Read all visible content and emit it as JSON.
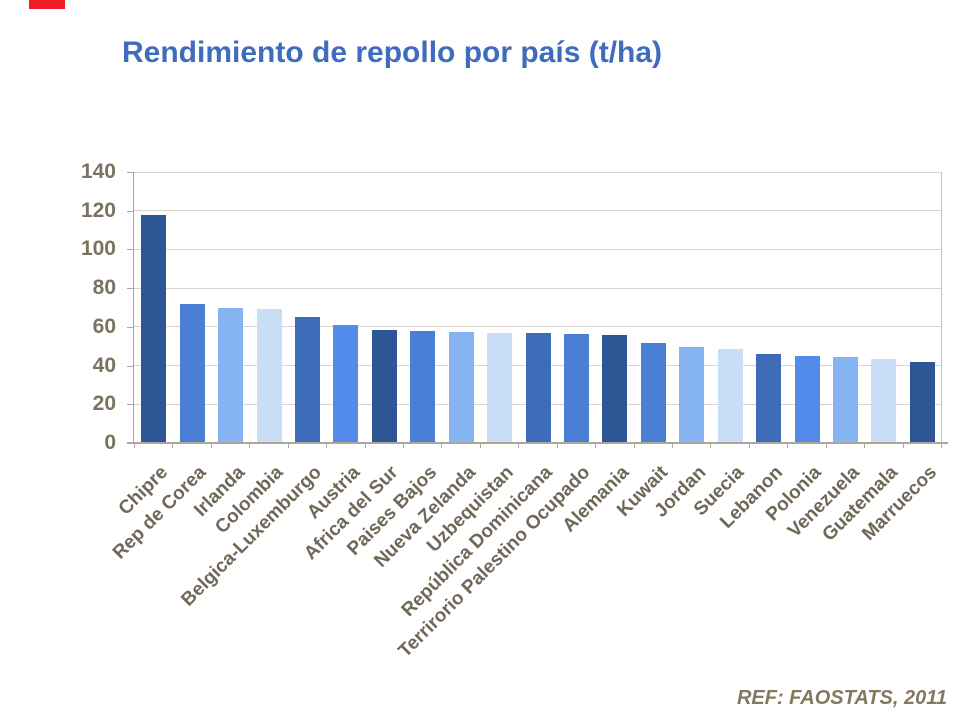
{
  "slide": {
    "title": "Rendimiento de repollo por país (t/ha)",
    "footer_ref": "REF: FAOSTATS, 2011",
    "accent_color": "#EE1C25",
    "title_color": "#3F6CBB",
    "footer_color": "#84795F",
    "background_color": "#FFFFFF"
  },
  "chart_data": {
    "type": "bar",
    "title": "Rendimiento de repollo por país (t/ha)",
    "xlabel": "",
    "ylabel": "",
    "ylim": [
      0,
      140
    ],
    "yticks": [
      0,
      20,
      40,
      60,
      80,
      100,
      120,
      140
    ],
    "grid": true,
    "legend": false,
    "categories": [
      "Chipre",
      "Rep de Corea",
      "Irlanda",
      "Colombia",
      "Belgica-Luxemburgo",
      "Austria",
      "Africa del Sur",
      "Paises Bajos",
      "Nueva Zelanda",
      "Uzbequistan",
      "República Dominicana",
      "Terrirorio Palestino Ocupado",
      "Alemania",
      "Kuwait",
      "Jordan",
      "Suecia",
      "Lebanon",
      "Polonia",
      "Venezuela",
      "Guatemala",
      "Marruecos"
    ],
    "values": [
      118,
      72,
      70,
      69,
      65,
      61,
      58.5,
      58,
      57.5,
      57,
      57,
      56.5,
      56,
      51.5,
      49.5,
      48.5,
      46,
      45,
      44.5,
      43.5,
      42
    ],
    "bar_colors": [
      "#2E5594",
      "#4B7FD6",
      "#86B4F2",
      "#C9DFF7",
      "#3E6CB8",
      "#528BEA",
      "#2E5594",
      "#4B7FD6",
      "#86B4F2",
      "#C9DFF7",
      "#3E6CB8",
      "#4B7FD6",
      "#2E5594",
      "#4B7FD6",
      "#86B4F2",
      "#C9DFF7",
      "#3E6CB8",
      "#528BEA",
      "#86B4F2",
      "#C9DFF7",
      "#2E5594"
    ],
    "axis_text_color": "#7B7260",
    "category_text_color": "#6F6857",
    "gridline_color": "#D8D4CB",
    "axis_line_color": "#AEA799",
    "plot_border_color": "#C6C1B7"
  }
}
